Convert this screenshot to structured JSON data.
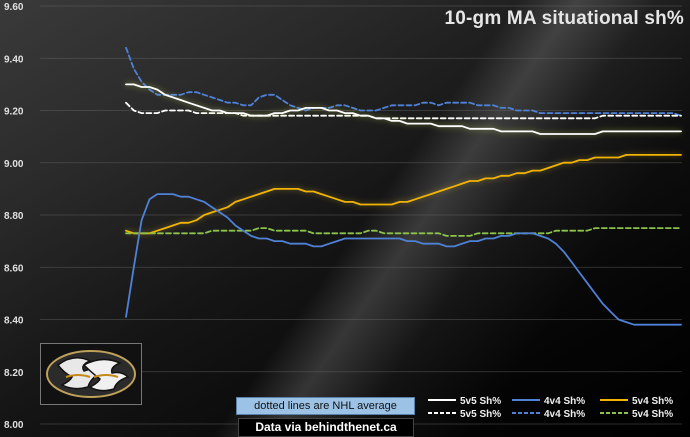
{
  "chart_data": {
    "type": "line",
    "title": "10-gm MA situational sh%",
    "xlabel": "",
    "ylabel": "",
    "ylim": [
      8.0,
      9.6
    ],
    "y_ticks": [
      "8.00",
      "8.20",
      "8.40",
      "8.60",
      "8.80",
      "9.00",
      "9.20",
      "9.40",
      "9.60"
    ],
    "grid": true,
    "legend_position": "bottom-right",
    "x": [
      1,
      2,
      3,
      4,
      5,
      6,
      7,
      8,
      9,
      10,
      11,
      12,
      13,
      14,
      15,
      16,
      17,
      18,
      19,
      20,
      21,
      22,
      23,
      24,
      25,
      26,
      27,
      28,
      29,
      30,
      31,
      32,
      33,
      34,
      35,
      36,
      37,
      38,
      39,
      40,
      41,
      42,
      43,
      44,
      45,
      46,
      47,
      48,
      49,
      50,
      51,
      52,
      53,
      54,
      55,
      56,
      57,
      58,
      59,
      60,
      61,
      62,
      63,
      64,
      65,
      66,
      67,
      68,
      69,
      70,
      71,
      72
    ],
    "series": [
      {
        "name": "5v5 Sh%",
        "color": "#ffffff",
        "dash": "solid",
        "glow": true,
        "values": [
          9.3,
          9.3,
          9.29,
          9.29,
          9.28,
          9.26,
          9.25,
          9.24,
          9.23,
          9.22,
          9.21,
          9.2,
          9.2,
          9.19,
          9.19,
          9.19,
          9.18,
          9.18,
          9.18,
          9.19,
          9.19,
          9.2,
          9.2,
          9.21,
          9.21,
          9.21,
          9.2,
          9.2,
          9.19,
          9.19,
          9.18,
          9.18,
          9.17,
          9.17,
          9.16,
          9.16,
          9.15,
          9.15,
          9.15,
          9.15,
          9.14,
          9.14,
          9.14,
          9.14,
          9.13,
          9.13,
          9.13,
          9.13,
          9.12,
          9.12,
          9.12,
          9.12,
          9.12,
          9.11,
          9.11,
          9.11,
          9.11,
          9.11,
          9.11,
          9.11,
          9.11,
          9.12,
          9.12,
          9.12,
          9.12,
          9.12,
          9.12,
          9.12,
          9.12,
          9.12,
          9.12,
          9.12
        ]
      },
      {
        "name": "4v4 Sh%",
        "color": "#4f81d6",
        "dash": "solid",
        "glow": false,
        "values": [
          8.41,
          8.6,
          8.78,
          8.86,
          8.88,
          8.88,
          8.88,
          8.87,
          8.87,
          8.86,
          8.85,
          8.83,
          8.81,
          8.79,
          8.76,
          8.74,
          8.72,
          8.71,
          8.71,
          8.7,
          8.7,
          8.69,
          8.69,
          8.69,
          8.68,
          8.68,
          8.69,
          8.7,
          8.71,
          8.71,
          8.71,
          8.71,
          8.71,
          8.71,
          8.71,
          8.71,
          8.7,
          8.7,
          8.69,
          8.69,
          8.69,
          8.68,
          8.68,
          8.69,
          8.7,
          8.7,
          8.71,
          8.71,
          8.72,
          8.72,
          8.73,
          8.73,
          8.73,
          8.72,
          8.71,
          8.69,
          8.66,
          8.62,
          8.58,
          8.54,
          8.5,
          8.46,
          8.43,
          8.4,
          8.39,
          8.38,
          8.38,
          8.38,
          8.38,
          8.38,
          8.38,
          8.38
        ]
      },
      {
        "name": "5v4 Sh%",
        "color": "#f2b400",
        "dash": "solid",
        "glow": true,
        "values": [
          8.74,
          8.73,
          8.73,
          8.73,
          8.74,
          8.75,
          8.76,
          8.77,
          8.77,
          8.78,
          8.8,
          8.81,
          8.82,
          8.83,
          8.85,
          8.86,
          8.87,
          8.88,
          8.89,
          8.9,
          8.9,
          8.9,
          8.9,
          8.89,
          8.89,
          8.88,
          8.87,
          8.86,
          8.85,
          8.85,
          8.84,
          8.84,
          8.84,
          8.84,
          8.84,
          8.85,
          8.85,
          8.86,
          8.87,
          8.88,
          8.89,
          8.9,
          8.91,
          8.92,
          8.93,
          8.93,
          8.94,
          8.94,
          8.95,
          8.95,
          8.96,
          8.96,
          8.97,
          8.97,
          8.98,
          8.99,
          9.0,
          9.0,
          9.01,
          9.01,
          9.02,
          9.02,
          9.02,
          9.02,
          9.03,
          9.03,
          9.03,
          9.03,
          9.03,
          9.03,
          9.03,
          9.03
        ]
      },
      {
        "name": "5v5 Sh%",
        "color": "#ffffff",
        "dash": "dashed",
        "glow": false,
        "values": [
          9.23,
          9.2,
          9.19,
          9.19,
          9.19,
          9.2,
          9.2,
          9.2,
          9.2,
          9.19,
          9.19,
          9.19,
          9.19,
          9.19,
          9.19,
          9.18,
          9.18,
          9.18,
          9.18,
          9.18,
          9.18,
          9.18,
          9.18,
          9.18,
          9.18,
          9.18,
          9.18,
          9.18,
          9.18,
          9.18,
          9.18,
          9.18,
          9.17,
          9.17,
          9.17,
          9.17,
          9.17,
          9.17,
          9.17,
          9.17,
          9.17,
          9.17,
          9.17,
          9.17,
          9.17,
          9.17,
          9.17,
          9.17,
          9.17,
          9.17,
          9.17,
          9.17,
          9.17,
          9.17,
          9.17,
          9.17,
          9.17,
          9.17,
          9.17,
          9.17,
          9.17,
          9.18,
          9.18,
          9.18,
          9.18,
          9.18,
          9.18,
          9.18,
          9.18,
          9.18,
          9.18,
          9.18
        ]
      },
      {
        "name": "4v4 Sh%",
        "color": "#4f81d6",
        "dash": "dashed",
        "glow": false,
        "values": [
          9.44,
          9.36,
          9.31,
          9.28,
          9.26,
          9.26,
          9.26,
          9.26,
          9.27,
          9.27,
          9.26,
          9.25,
          9.24,
          9.23,
          9.23,
          9.22,
          9.22,
          9.25,
          9.26,
          9.26,
          9.24,
          9.22,
          9.21,
          9.2,
          9.21,
          9.21,
          9.21,
          9.22,
          9.22,
          9.21,
          9.2,
          9.2,
          9.2,
          9.21,
          9.22,
          9.22,
          9.22,
          9.22,
          9.23,
          9.23,
          9.22,
          9.23,
          9.23,
          9.23,
          9.23,
          9.22,
          9.22,
          9.22,
          9.21,
          9.21,
          9.2,
          9.2,
          9.2,
          9.19,
          9.19,
          9.19,
          9.19,
          9.19,
          9.19,
          9.19,
          9.19,
          9.19,
          9.19,
          9.19,
          9.19,
          9.19,
          9.19,
          9.19,
          9.19,
          9.19,
          9.19,
          9.18
        ]
      },
      {
        "name": "5v4 Sh%",
        "color": "#8bc34a",
        "dash": "dashed",
        "glow": false,
        "values": [
          8.73,
          8.73,
          8.73,
          8.73,
          8.73,
          8.73,
          8.73,
          8.73,
          8.73,
          8.73,
          8.73,
          8.74,
          8.74,
          8.74,
          8.74,
          8.74,
          8.74,
          8.75,
          8.75,
          8.74,
          8.74,
          8.74,
          8.74,
          8.74,
          8.73,
          8.73,
          8.73,
          8.73,
          8.73,
          8.73,
          8.73,
          8.74,
          8.74,
          8.73,
          8.73,
          8.73,
          8.73,
          8.73,
          8.73,
          8.73,
          8.73,
          8.72,
          8.72,
          8.72,
          8.72,
          8.73,
          8.73,
          8.73,
          8.73,
          8.73,
          8.73,
          8.73,
          8.73,
          8.73,
          8.73,
          8.74,
          8.74,
          8.74,
          8.74,
          8.74,
          8.75,
          8.75,
          8.75,
          8.75,
          8.75,
          8.75,
          8.75,
          8.75,
          8.75,
          8.75,
          8.75,
          8.75
        ]
      }
    ],
    "legend": [
      {
        "label": "5v5 Sh%",
        "color": "#ffffff",
        "dash": "solid"
      },
      {
        "label": "4v4 Sh%",
        "color": "#4f81d6",
        "dash": "solid"
      },
      {
        "label": "5v4 Sh%",
        "color": "#f2b400",
        "dash": "solid"
      },
      {
        "label": "5v5 Sh%",
        "color": "#ffffff",
        "dash": "dashed"
      },
      {
        "label": "4v4 Sh%",
        "color": "#4f81d6",
        "dash": "dashed"
      },
      {
        "label": "5v4 Sh%",
        "color": "#8bc34a",
        "dash": "dashed"
      }
    ]
  },
  "note": "dotted lines are NHL average",
  "source": "Data via behindthenet.ca",
  "logo_icon": "ducks-logo-icon"
}
